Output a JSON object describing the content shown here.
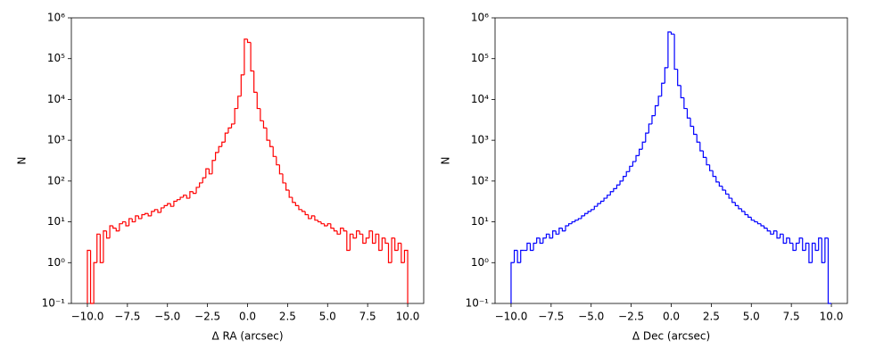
{
  "chart_data": [
    {
      "type": "histogram",
      "xlabel": "Δ RA (arcsec)",
      "ylabel": "N",
      "color": "#ff0000",
      "yscale": "log",
      "bins": [
        -10,
        -9.8,
        -9.6,
        -9.4,
        -9.2,
        -9,
        -8.8,
        -8.6,
        -8.4,
        -8.2,
        -8,
        -7.8,
        -7.6,
        -7.4,
        -7.2,
        -7,
        -6.8,
        -6.6,
        -6.4,
        -6.2,
        -6,
        -5.8,
        -5.6,
        -5.4,
        -5.2,
        -5,
        -4.8,
        -4.6,
        -4.4,
        -4.2,
        -4,
        -3.8,
        -3.6,
        -3.4,
        -3.2,
        -3,
        -2.8,
        -2.6,
        -2.4,
        -2.2,
        -2,
        -1.8,
        -1.6,
        -1.4,
        -1.2,
        -1,
        -0.8,
        -0.6,
        -0.4,
        -0.2,
        0,
        0.2,
        0.4,
        0.6,
        0.8,
        1,
        1.2,
        1.4,
        1.6,
        1.8,
        2,
        2.2,
        2.4,
        2.6,
        2.8,
        3,
        3.2,
        3.4,
        3.6,
        3.8,
        4,
        4.2,
        4.4,
        4.6,
        4.8,
        5,
        5.2,
        5.4,
        5.6,
        5.8,
        6,
        6.2,
        6.4,
        6.6,
        6.8,
        7,
        7.2,
        7.4,
        7.6,
        7.8,
        8,
        8.2,
        8.4,
        8.6,
        8.8,
        9,
        9.2,
        9.4,
        9.6,
        9.8,
        10
      ],
      "values": [
        2,
        0,
        1,
        5,
        1,
        6,
        4,
        8,
        7,
        6,
        9,
        10,
        8,
        12,
        10,
        14,
        12,
        15,
        16,
        14,
        18,
        20,
        17,
        22,
        25,
        28,
        24,
        32,
        35,
        40,
        45,
        38,
        55,
        50,
        70,
        90,
        120,
        200,
        150,
        320,
        500,
        700,
        900,
        1500,
        2000,
        2500,
        6000,
        12000,
        40000,
        300000,
        250000,
        50000,
        15000,
        6000,
        3000,
        2000,
        1000,
        700,
        400,
        250,
        150,
        90,
        60,
        40,
        30,
        25,
        20,
        18,
        15,
        12,
        14,
        11,
        10,
        9,
        8,
        9,
        7,
        6,
        5,
        7,
        6,
        2,
        5,
        4,
        6,
        5,
        3,
        4,
        6,
        3,
        5,
        2,
        4,
        3,
        1,
        4,
        2,
        3,
        1,
        2
      ],
      "xlim": [
        -11,
        11
      ],
      "ylim": [
        0.1,
        1000000
      ],
      "xticks": [
        {
          "value": -10,
          "label": "−10.0"
        },
        {
          "value": -7.5,
          "label": "−7.5"
        },
        {
          "value": -5,
          "label": "−5.0"
        },
        {
          "value": -2.5,
          "label": "−2.5"
        },
        {
          "value": 0,
          "label": "0.0"
        },
        {
          "value": 2.5,
          "label": "2.5"
        },
        {
          "value": 5,
          "label": "5.0"
        },
        {
          "value": 7.5,
          "label": "7.5"
        },
        {
          "value": 10,
          "label": "10.0"
        }
      ],
      "yticks": [
        {
          "value": 0.1,
          "label": "10⁻¹"
        },
        {
          "value": 1,
          "label": "10⁰"
        },
        {
          "value": 10,
          "label": "10¹"
        },
        {
          "value": 100,
          "label": "10²"
        },
        {
          "value": 1000,
          "label": "10³"
        },
        {
          "value": 10000,
          "label": "10⁴"
        },
        {
          "value": 100000,
          "label": "10⁵"
        },
        {
          "value": 1000000,
          "label": "10⁶"
        }
      ]
    },
    {
      "type": "histogram",
      "xlabel": "Δ Dec (arcsec)",
      "ylabel": "N",
      "color": "#0000ff",
      "yscale": "log",
      "bins": [
        -10,
        -9.8,
        -9.6,
        -9.4,
        -9.2,
        -9,
        -8.8,
        -8.6,
        -8.4,
        -8.2,
        -8,
        -7.8,
        -7.6,
        -7.4,
        -7.2,
        -7,
        -6.8,
        -6.6,
        -6.4,
        -6.2,
        -6,
        -5.8,
        -5.6,
        -5.4,
        -5.2,
        -5,
        -4.8,
        -4.6,
        -4.4,
        -4.2,
        -4,
        -3.8,
        -3.6,
        -3.4,
        -3.2,
        -3,
        -2.8,
        -2.6,
        -2.4,
        -2.2,
        -2,
        -1.8,
        -1.6,
        -1.4,
        -1.2,
        -1,
        -0.8,
        -0.6,
        -0.4,
        -0.2,
        0,
        0.2,
        0.4,
        0.6,
        0.8,
        1,
        1.2,
        1.4,
        1.6,
        1.8,
        2,
        2.2,
        2.4,
        2.6,
        2.8,
        3,
        3.2,
        3.4,
        3.6,
        3.8,
        4,
        4.2,
        4.4,
        4.6,
        4.8,
        5,
        5.2,
        5.4,
        5.6,
        5.8,
        6,
        6.2,
        6.4,
        6.6,
        6.8,
        7,
        7.2,
        7.4,
        7.6,
        7.8,
        8,
        8.2,
        8.4,
        8.6,
        8.8,
        9,
        9.2,
        9.4,
        9.6,
        9.8,
        10
      ],
      "values": [
        1,
        2,
        1,
        2,
        2,
        3,
        2,
        3,
        4,
        3,
        4,
        5,
        4,
        6,
        5,
        7,
        6,
        8,
        9,
        10,
        11,
        12,
        14,
        16,
        18,
        20,
        24,
        28,
        32,
        38,
        45,
        55,
        65,
        80,
        100,
        130,
        170,
        230,
        300,
        420,
        600,
        900,
        1500,
        2500,
        4000,
        7000,
        12000,
        25000,
        60000,
        450000,
        400000,
        55000,
        22000,
        11000,
        6000,
        3500,
        2200,
        1400,
        900,
        550,
        380,
        250,
        180,
        130,
        95,
        75,
        60,
        48,
        38,
        30,
        25,
        21,
        18,
        15,
        13,
        11,
        10,
        9,
        8,
        7,
        6,
        5,
        6,
        4,
        5,
        3,
        4,
        3,
        2,
        3,
        4,
        2,
        3,
        1,
        3,
        2,
        4,
        1,
        4,
        0
      ],
      "xlim": [
        -11,
        11
      ],
      "ylim": [
        0.1,
        1000000
      ],
      "xticks": [
        {
          "value": -10,
          "label": "−10.0"
        },
        {
          "value": -7.5,
          "label": "−7.5"
        },
        {
          "value": -5,
          "label": "−5.0"
        },
        {
          "value": -2.5,
          "label": "−2.5"
        },
        {
          "value": 0,
          "label": "0.0"
        },
        {
          "value": 2.5,
          "label": "2.5"
        },
        {
          "value": 5,
          "label": "5.0"
        },
        {
          "value": 7.5,
          "label": "7.5"
        },
        {
          "value": 10,
          "label": "10.0"
        }
      ],
      "yticks": [
        {
          "value": 0.1,
          "label": "10⁻¹"
        },
        {
          "value": 1,
          "label": "10⁰"
        },
        {
          "value": 10,
          "label": "10¹"
        },
        {
          "value": 100,
          "label": "10²"
        },
        {
          "value": 1000,
          "label": "10³"
        },
        {
          "value": 10000,
          "label": "10⁴"
        },
        {
          "value": 100000,
          "label": "10⁵"
        },
        {
          "value": 1000000,
          "label": "10⁶"
        }
      ]
    }
  ]
}
